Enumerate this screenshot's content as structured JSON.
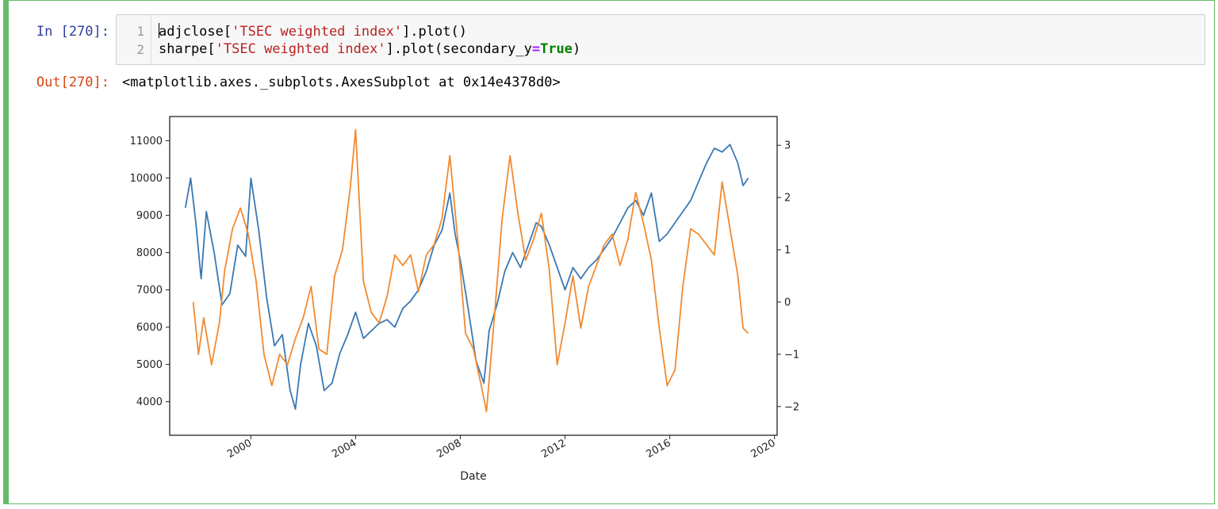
{
  "cell": {
    "in_prompt": "In [270]:",
    "out_prompt": "Out[270]:",
    "line_numbers": [
      "1",
      "2"
    ],
    "code_line1": {
      "var": "adjclose[",
      "str": "'TSEC weighted index'",
      "rest": "].plot()"
    },
    "code_line2": {
      "var": "sharpe[",
      "str": "'TSEC weighted index'",
      "mid": "].plot(secondary_y",
      "op": "=",
      "kw": "True",
      "end": ")"
    },
    "output_text": "<matplotlib.axes._subplots.AxesSubplot at 0x14e4378d0>"
  },
  "colors": {
    "series_adjclose": "#3a78b4",
    "series_sharpe": "#f28a30",
    "cell_border": "#66bb6a"
  },
  "chart_data": {
    "type": "line",
    "xlabel": "Date",
    "x_ticks": [
      "2000",
      "2004",
      "2008",
      "2012",
      "2016",
      "2020"
    ],
    "y_left_ticks": [
      "4000",
      "5000",
      "6000",
      "7000",
      "8000",
      "9000",
      "10000",
      "11000"
    ],
    "y_right_ticks": [
      "−2",
      "−1",
      "0",
      "1",
      "2",
      "3"
    ],
    "xlim": [
      1996.9,
      2020.1
    ],
    "ylim_left": [
      3100,
      11650
    ],
    "ylim_right": [
      -2.55,
      3.55
    ],
    "grid": false,
    "series": [
      {
        "axis": "left",
        "x": [
          1997.5,
          1997.7,
          1997.9,
          1998.1,
          1998.3,
          1998.6,
          1998.9,
          1999.2,
          1999.5,
          1999.8,
          2000.0,
          2000.3,
          2000.6,
          2000.9,
          2001.2,
          2001.5,
          2001.7,
          2001.9,
          2002.2,
          2002.5,
          2002.8,
          2003.1,
          2003.4,
          2003.7,
          2004.0,
          2004.3,
          2004.6,
          2004.9,
          2005.2,
          2005.5,
          2005.8,
          2006.1,
          2006.4,
          2006.7,
          2007.0,
          2007.3,
          2007.6,
          2007.8,
          2008.0,
          2008.3,
          2008.6,
          2008.9,
          2009.1,
          2009.4,
          2009.7,
          2010.0,
          2010.3,
          2010.6,
          2010.9,
          2011.1,
          2011.4,
          2011.7,
          2012.0,
          2012.3,
          2012.6,
          2012.9,
          2013.2,
          2013.5,
          2013.8,
          2014.1,
          2014.4,
          2014.7,
          2015.0,
          2015.3,
          2015.6,
          2015.9,
          2016.2,
          2016.5,
          2016.8,
          2017.1,
          2017.4,
          2017.7,
          2018.0,
          2018.3,
          2018.6,
          2018.8,
          2019.0
        ],
        "y": [
          9200,
          10000,
          8800,
          7300,
          9100,
          8000,
          6600,
          6900,
          8200,
          7900,
          10000,
          8600,
          6800,
          5500,
          5800,
          4300,
          3800,
          5000,
          6100,
          5500,
          4300,
          4500,
          5300,
          5800,
          6400,
          5700,
          5900,
          6100,
          6200,
          6000,
          6500,
          6700,
          7000,
          7500,
          8200,
          8600,
          9600,
          8500,
          7800,
          6500,
          5100,
          4500,
          5900,
          6600,
          7500,
          8000,
          7600,
          8200,
          8800,
          8700,
          8200,
          7600,
          7000,
          7600,
          7300,
          7600,
          7800,
          8100,
          8400,
          8800,
          9200,
          9400,
          9000,
          9600,
          8300,
          8500,
          8800,
          9100,
          9400,
          9900,
          10400,
          10800,
          10700,
          10900,
          10400,
          9800,
          10000
        ]
      },
      {
        "axis": "right",
        "x": [
          1997.8,
          1998.0,
          1998.2,
          1998.5,
          1998.8,
          1999.0,
          1999.3,
          1999.6,
          1999.9,
          2000.2,
          2000.5,
          2000.8,
          2001.1,
          2001.4,
          2001.7,
          2002.0,
          2002.3,
          2002.6,
          2002.9,
          2003.2,
          2003.5,
          2003.8,
          2004.0,
          2004.3,
          2004.6,
          2004.9,
          2005.2,
          2005.5,
          2005.8,
          2006.1,
          2006.4,
          2006.7,
          2007.0,
          2007.3,
          2007.6,
          2007.9,
          2008.2,
          2008.5,
          2008.8,
          2009.0,
          2009.3,
          2009.6,
          2009.9,
          2010.2,
          2010.5,
          2010.8,
          2011.1,
          2011.4,
          2011.7,
          2012.0,
          2012.3,
          2012.6,
          2012.9,
          2013.2,
          2013.5,
          2013.8,
          2014.1,
          2014.4,
          2014.7,
          2015.0,
          2015.3,
          2015.6,
          2015.9,
          2016.2,
          2016.5,
          2016.8,
          2017.1,
          2017.4,
          2017.7,
          2018.0,
          2018.3,
          2018.6,
          2018.8,
          2019.0
        ],
        "y": [
          0,
          -1.0,
          -0.3,
          -1.2,
          -0.4,
          0.6,
          1.4,
          1.8,
          1.3,
          0.4,
          -1.0,
          -1.6,
          -1.0,
          -1.2,
          -0.7,
          -0.3,
          0.3,
          -0.9,
          -1.0,
          0.5,
          1.0,
          2.2,
          3.3,
          0.4,
          -0.2,
          -0.4,
          0.1,
          0.9,
          0.7,
          0.9,
          0.2,
          0.9,
          1.1,
          1.6,
          2.8,
          1.2,
          -0.6,
          -0.9,
          -1.6,
          -2.1,
          -0.3,
          1.6,
          2.8,
          1.7,
          0.8,
          1.2,
          1.7,
          0.6,
          -1.2,
          -0.4,
          0.5,
          -0.5,
          0.3,
          0.7,
          1.1,
          1.3,
          0.7,
          1.2,
          2.1,
          1.5,
          0.8,
          -0.5,
          -1.6,
          -1.3,
          0.3,
          1.4,
          1.3,
          1.1,
          0.9,
          2.3,
          1.4,
          0.5,
          -0.5,
          -0.6
        ]
      }
    ]
  }
}
